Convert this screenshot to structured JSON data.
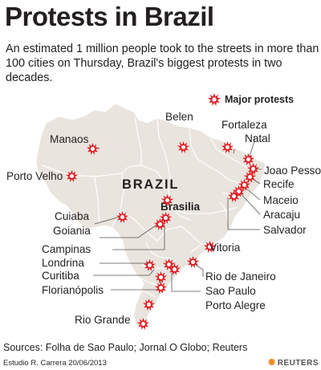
{
  "title": "Protests in Brazil",
  "subtitle": "An estimated 1 million people took to the streets in more than 100 cities on Thursday, Brazil's biggest protests in two decades.",
  "legend": {
    "label": "Major protests"
  },
  "map": {
    "country_label": "BRAZIL",
    "capital_label": "Brasilia"
  },
  "colors": {
    "land": "#e9e4dd",
    "border": "#ffffff",
    "marker": "#e02027",
    "leader": "#555555",
    "text": "#231f20"
  },
  "cities": [
    "Manaos",
    "Belen",
    "Fortaleza",
    "Natal",
    "Porto Velho",
    "Joao Pessoa",
    "Recife",
    "Maceio",
    "Aracaju",
    "Salvador",
    "Cuiaba",
    "Goiania",
    "Campinas",
    "Londrina",
    "Curitiba",
    "Florianópolis",
    "Vitoria",
    "Rio de Janeiro",
    "Sao Paulo",
    "Porto Alegre",
    "Rio Grande"
  ],
  "footer": {
    "sources": "Sources: Folha de Sao Paulo; Jornal O Globo; Reuters",
    "byline": "Estudio R. Carrera 20/06/2013",
    "brand": "REUTERS"
  }
}
